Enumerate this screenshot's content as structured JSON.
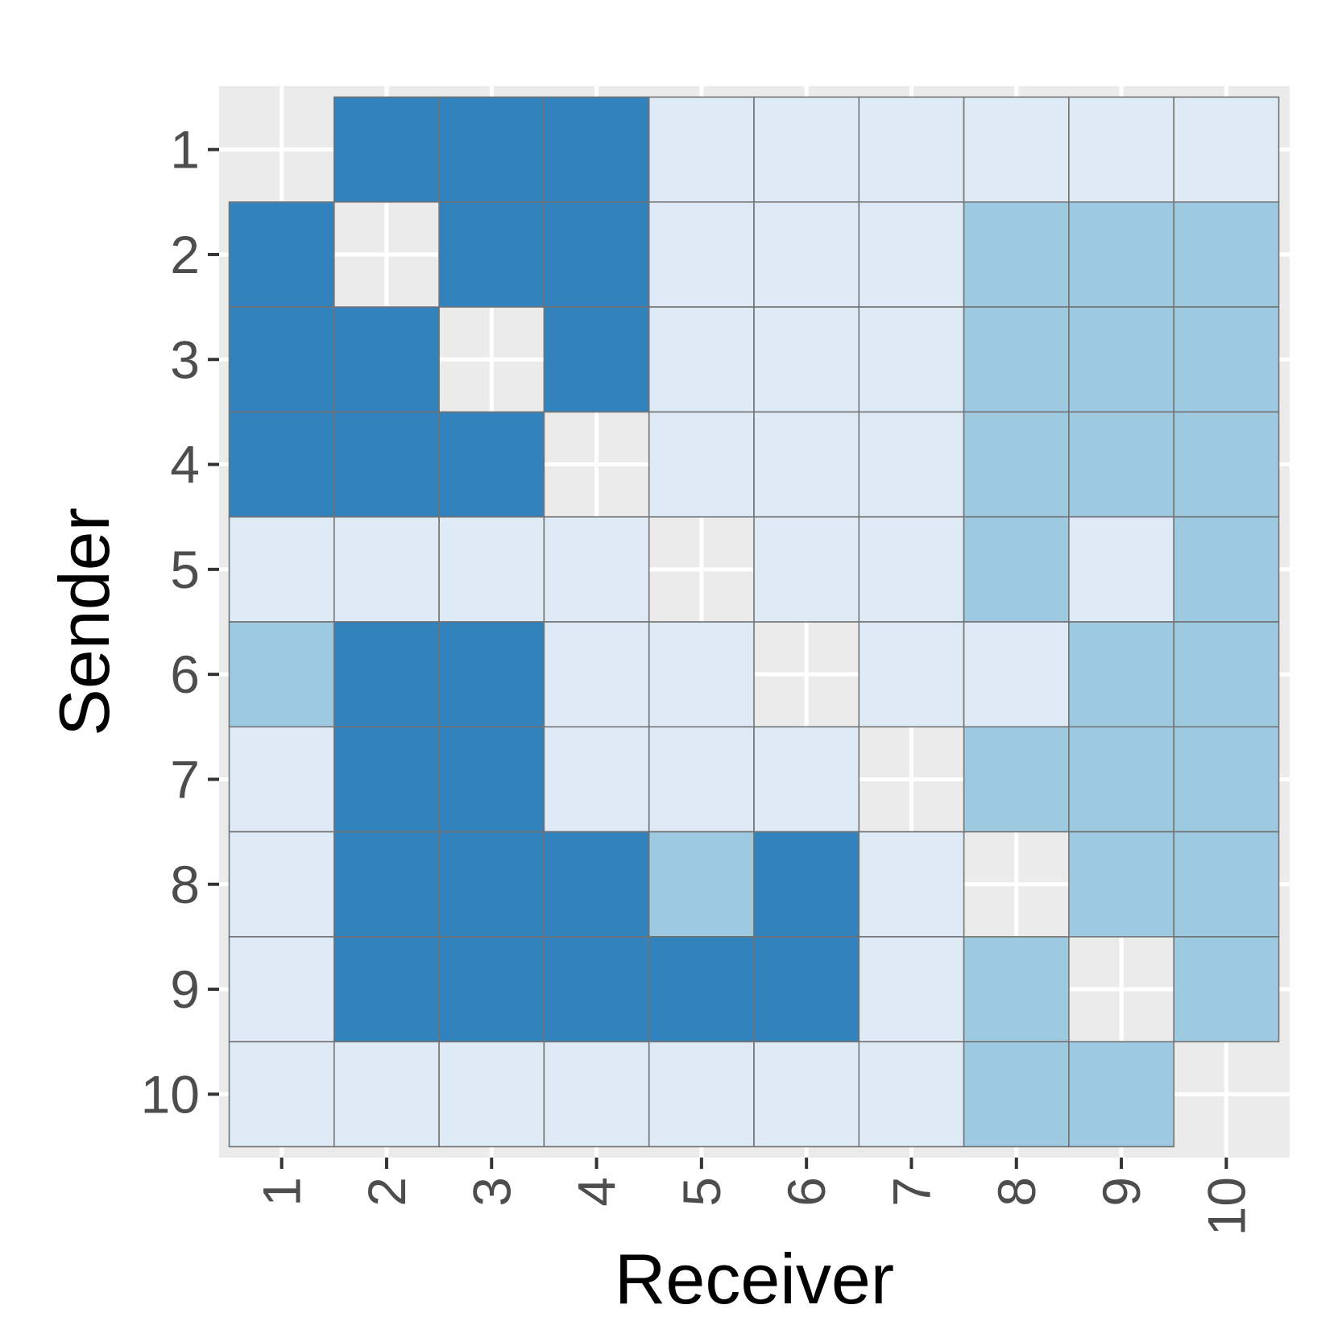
{
  "chart_data": {
    "type": "heatmap",
    "xlabel": "Receiver",
    "ylabel": "Sender",
    "x_categories": [
      "1",
      "2",
      "3",
      "4",
      "5",
      "6",
      "7",
      "8",
      "9",
      "10"
    ],
    "y_categories": [
      "1",
      "2",
      "3",
      "4",
      "5",
      "6",
      "7",
      "8",
      "9",
      "10"
    ],
    "levels": [
      {
        "level": 1,
        "color": "#deebf7"
      },
      {
        "level": 2,
        "color": "#9ecae1"
      },
      {
        "level": 3,
        "color": "#3182bd"
      }
    ],
    "matrix": [
      [
        null,
        3,
        3,
        3,
        1,
        1,
        1,
        1,
        1,
        1
      ],
      [
        3,
        null,
        3,
        3,
        1,
        1,
        1,
        2,
        2,
        2
      ],
      [
        3,
        3,
        null,
        3,
        1,
        1,
        1,
        2,
        2,
        2
      ],
      [
        3,
        3,
        3,
        null,
        1,
        1,
        1,
        2,
        2,
        2
      ],
      [
        1,
        1,
        1,
        1,
        null,
        1,
        1,
        2,
        1,
        2
      ],
      [
        2,
        3,
        3,
        1,
        1,
        null,
        1,
        1,
        2,
        2
      ],
      [
        1,
        3,
        3,
        1,
        1,
        1,
        null,
        2,
        2,
        2
      ],
      [
        1,
        3,
        3,
        3,
        2,
        3,
        1,
        null,
        2,
        2
      ],
      [
        1,
        3,
        3,
        3,
        3,
        3,
        1,
        2,
        null,
        2
      ],
      [
        1,
        1,
        1,
        1,
        1,
        1,
        1,
        2,
        2,
        null
      ]
    ],
    "panel_background": "#ebebeb",
    "grid_color": "#ffffff",
    "tile_border_color": "#737373",
    "grid": true
  }
}
